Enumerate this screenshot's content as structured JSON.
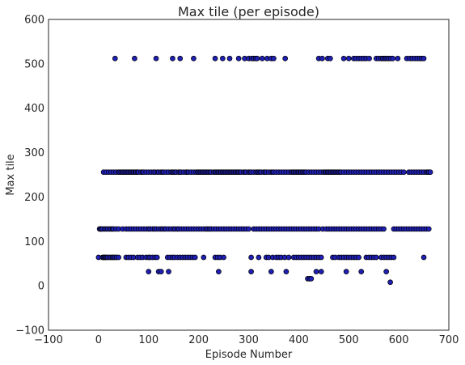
{
  "chart_data": {
    "type": "scatter",
    "title": "Max tile (per episode)",
    "xlabel": "Episode Number",
    "ylabel": "Max tile",
    "xlim": [
      -100,
      700
    ],
    "ylim": [
      -100,
      600
    ],
    "xticks": [
      -100,
      0,
      100,
      200,
      300,
      400,
      500,
      600,
      700
    ],
    "yticks": [
      -100,
      0,
      100,
      200,
      300,
      400,
      500,
      600
    ],
    "xtick_labels": [
      "−100",
      "0",
      "100",
      "200",
      "300",
      "400",
      "500",
      "600",
      "700"
    ],
    "ytick_labels": [
      "−100",
      "0",
      "100",
      "200",
      "300",
      "400",
      "500",
      "600"
    ],
    "grid": false,
    "marker_color": "#1f1fb4",
    "marker_edge": "#000000",
    "series": [
      {
        "values": [
          {
            "y": 512,
            "x": [
              33,
              72,
              115,
              148,
              163,
              190,
              233,
              248,
              262,
              280,
              292,
              300,
              306,
              310,
              314,
              317,
              327,
              337,
              345,
              350,
              373,
              440,
              447,
              458,
              463,
              490,
              500,
              510,
              515,
              520,
              525,
              530,
              535,
              541,
              555,
              560,
              565,
              568,
              571,
              574,
              577,
              580,
              584,
              588,
              598,
              616,
              622,
              627,
              632,
              637,
              642,
              646,
              650
            ]
          },
          {
            "y": 256,
            "x": [
              10,
              15,
              20,
              25,
              30,
              35,
              40,
              42,
              45,
              48,
              50,
              53,
              55,
              58,
              60,
              63,
              65,
              68,
              70,
              73,
              75,
              78,
              80,
              85,
              88,
              90,
              95,
              100,
              105,
              110,
              113,
              118,
              120,
              125,
              128,
              130,
              135,
              140,
              145,
              148,
              150,
              153,
              155,
              160,
              163,
              165,
              170,
              175,
              178,
              180,
              185,
              190,
              195,
              198,
              200,
              203,
              205,
              208,
              210,
              213,
              215,
              218,
              220,
              223,
              225,
              230,
              233,
              235,
              238,
              240,
              243,
              245,
              248,
              250,
              253,
              255,
              258,
              260,
              263,
              265,
              268,
              270,
              273,
              275,
              278,
              280,
              283,
              285,
              290,
              293,
              295,
              300,
              303,
              305,
              310,
              315,
              318,
              320,
              323,
              325,
              330,
              333,
              335,
              340,
              345,
              348,
              350,
              355,
              360,
              365,
              370,
              375,
              380,
              385,
              388,
              390,
              393,
              395,
              398,
              400,
              403,
              405,
              408,
              410,
              413,
              415,
              420,
              425,
              430,
              435,
              440,
              445,
              450,
              453,
              455,
              458,
              460,
              463,
              465,
              468,
              470,
              473,
              475,
              478,
              480,
              483,
              485,
              490,
              495,
              500,
              505,
              510,
              515,
              520,
              525,
              530,
              535,
              540,
              545,
              550,
              555,
              560,
              565,
              570,
              575,
              580,
              585,
              590,
              595,
              600,
              605,
              610,
              620,
              625,
              630,
              635,
              640,
              645,
              650,
              655,
              658,
              660,
              663
            ]
          },
          {
            "y": 128,
            "x": [
              2,
              4,
              6,
              8,
              12,
              15,
              18,
              22,
              25,
              28,
              30,
              35,
              40,
              48,
              55,
              60,
              65,
              70,
              75,
              80,
              85,
              90,
              95,
              100,
              103,
              108,
              112,
              115,
              120,
              125,
              128,
              132,
              135,
              140,
              145,
              150,
              153,
              158,
              160,
              165,
              170,
              175,
              180,
              185,
              190,
              195,
              200,
              205,
              210,
              215,
              218,
              222,
              225,
              230,
              235,
              240,
              245,
              250,
              255,
              260,
              265,
              270,
              275,
              280,
              285,
              290,
              295,
              300,
              310,
              315,
              320,
              325,
              330,
              335,
              340,
              345,
              350,
              355,
              360,
              365,
              370,
              375,
              380,
              385,
              390,
              395,
              400,
              405,
              410,
              415,
              420,
              425,
              430,
              435,
              440,
              448,
              455,
              460,
              465,
              470,
              475,
              480,
              485,
              490,
              495,
              500,
              505,
              510,
              515,
              520,
              525,
              530,
              535,
              540,
              545,
              550,
              555,
              560,
              565,
              570,
              590,
              595,
              600,
              605,
              610,
              615,
              620,
              625,
              630,
              635,
              640,
              645,
              650,
              655,
              660
            ]
          },
          {
            "y": 64,
            "x": 0
          },
          {
            "y": 64,
            "x": [
              8,
              10,
              12,
              14,
              16,
              18,
              22,
              25,
              28,
              30,
              33,
              36,
              40,
              55,
              60,
              65,
              70,
              78,
              83,
              88,
              95,
              100,
              103,
              108,
              113,
              117,
              138,
              143,
              148,
              152,
              158,
              163,
              168,
              173,
              178,
              183,
              188,
              193,
              210,
              233,
              238,
              243,
              250,
              305,
              320,
              335,
              340,
              348,
              355,
              360,
              365,
              372,
              380,
              390,
              395,
              400,
              405,
              410,
              415,
              420,
              425,
              430,
              435,
              440,
              445,
              468,
              473,
              480,
              485,
              490,
              495,
              500,
              505,
              510,
              515,
              520,
              535,
              540,
              545,
              550,
              555,
              565,
              570,
              575,
              580,
              585,
              590,
              650
            ]
          },
          {
            "y": 32,
            "x": [
              100,
              120,
              125,
              140,
              240,
              305,
              345,
              375,
              435,
              445,
              495,
              525,
              575
            ]
          },
          {
            "y": 16,
            "x": [
              418,
              422,
              425
            ]
          },
          {
            "y": 8,
            "x": [
              583
            ]
          }
        ]
      }
    ]
  }
}
